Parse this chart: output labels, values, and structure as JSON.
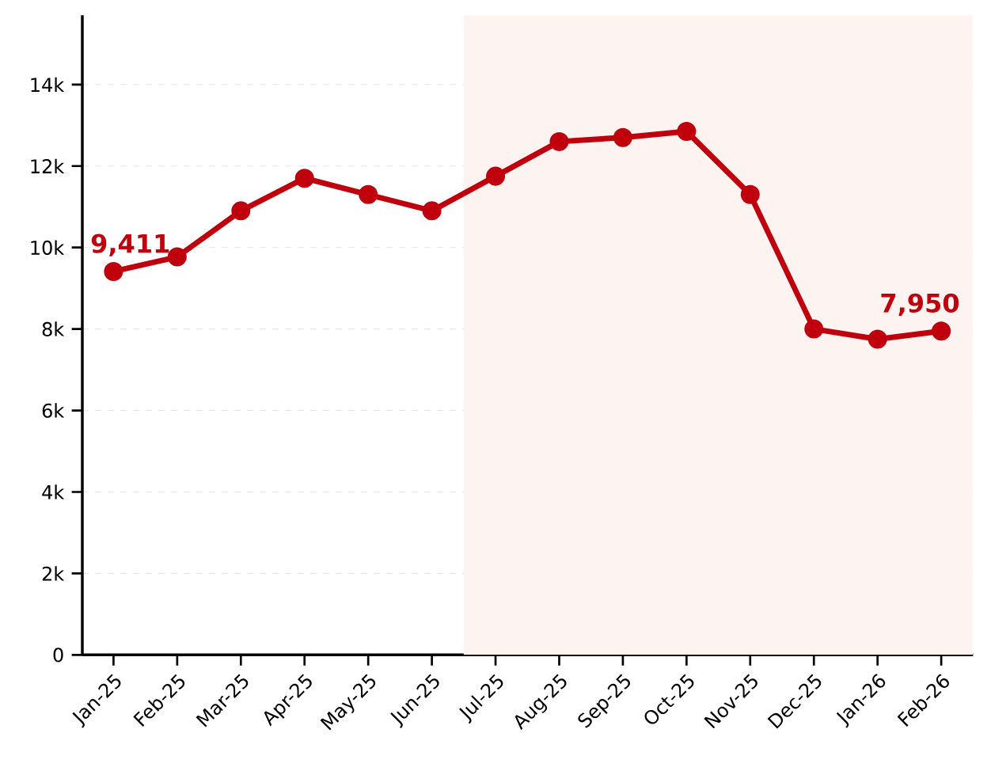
{
  "chart_data": {
    "type": "line",
    "categories": [
      "Jan-25",
      "Feb-25",
      "Mar-25",
      "Apr-25",
      "May-25",
      "Jun-25",
      "Jul-25",
      "Aug-25",
      "Sep-25",
      "Oct-25",
      "Nov-25",
      "Dec-25",
      "Jan-26",
      "Feb-26"
    ],
    "series": [
      {
        "color": "#c0000c",
        "values": [
          9411,
          9770,
          10900,
          11700,
          11300,
          10900,
          11750,
          12600,
          12700,
          12850,
          11300,
          8000,
          7750,
          7950
        ]
      }
    ],
    "ylim": [
      0,
      15700
    ],
    "yticks": [
      0,
      {
        "value": 2000,
        "label": "2k"
      },
      {
        "value": 4000,
        "label": "4k"
      },
      {
        "value": 6000,
        "label": "6k"
      },
      {
        "value": 8000,
        "label": "8k"
      },
      {
        "value": 10000,
        "label": "10k"
      },
      {
        "value": 12000,
        "label": "12k"
      },
      {
        "value": 14000,
        "label": "14k"
      }
    ],
    "bands": [
      {
        "axis": "x",
        "from": "Jul-25",
        "to": "Feb-26",
        "color": "#fdf3f1"
      }
    ],
    "annotations": [
      {
        "text": "9,411",
        "x": "Jan-25",
        "y": 9411
      },
      {
        "text": "7,950",
        "x": "Feb-26",
        "y": 7950
      }
    ],
    "grid": "y",
    "marker": "circle",
    "line_style": "solid"
  }
}
